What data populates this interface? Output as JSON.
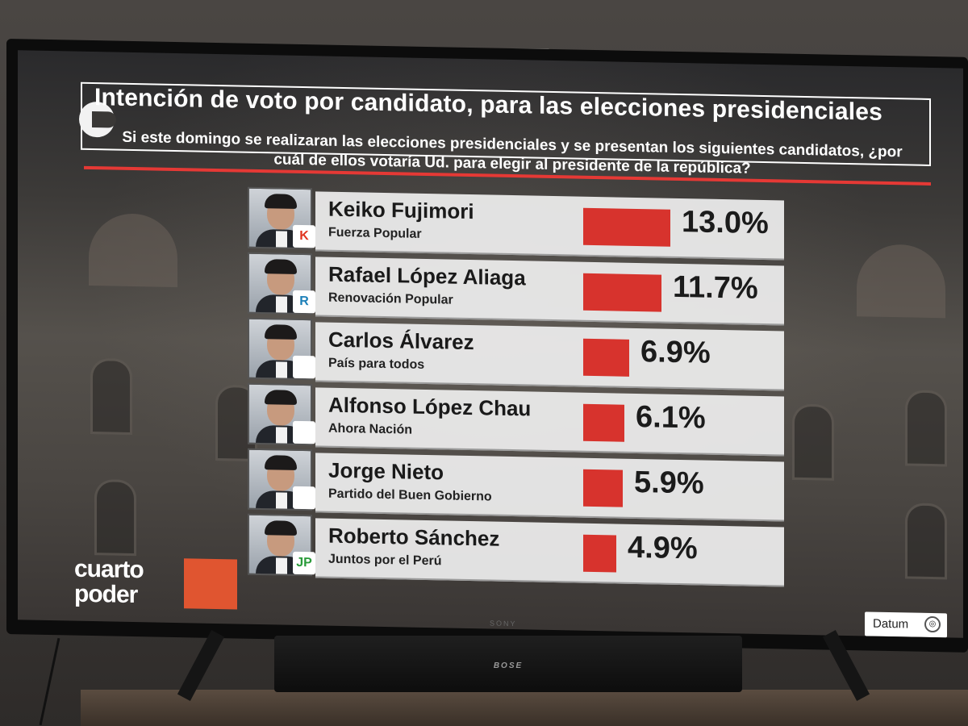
{
  "header": {
    "title": "Intención de voto por candidato, para las elecciones presidenciales",
    "question": "Si este domingo se realizaran las elecciones presidenciales y se presentan los siguientes candidatos, ¿por cuál de ellos votaría Ud. para elegir al presidente de la república?"
  },
  "colors": {
    "bar": "#d7332d",
    "rule": "#e53935",
    "card": "#eeeeee"
  },
  "chart_data": {
    "type": "bar",
    "title": "Intención de voto por candidato, para las elecciones presidenciales",
    "categories": [
      "Keiko Fujimori",
      "Rafael López Aliaga",
      "Carlos Álvarez",
      "Alfonso López Chau",
      "Jorge Nieto",
      "Roberto Sánchez"
    ],
    "values": [
      13.0,
      11.7,
      6.9,
      6.1,
      5.9,
      4.9
    ],
    "labels": [
      "13.0%",
      "11.7%",
      "6.9%",
      "6.1%",
      "5.9%",
      "4.9%"
    ],
    "parties": [
      "Fuerza Popular",
      "Renovación Popular",
      "País para todos",
      "Ahora Nación",
      "Partido del Buen Gobierno",
      "Juntos por el  Perú"
    ],
    "party_icons": [
      "K",
      "R",
      "",
      "",
      "",
      "JP"
    ],
    "orientation": "horizontal"
  },
  "branding": {
    "logo_line1": "cuarto",
    "logo_line2": "poder",
    "pollster": "Datum",
    "pollster_icon": "globe-icon",
    "tv_brand": "SONY",
    "soundbar_brand": "BOSE"
  }
}
